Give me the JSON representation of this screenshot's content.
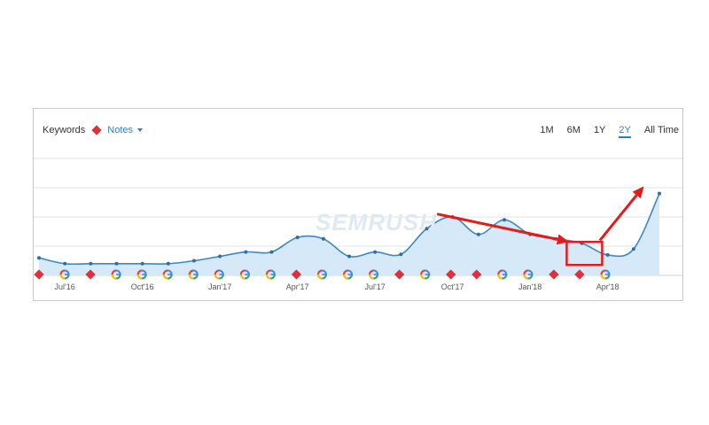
{
  "header": {
    "keywords_label": "Keywords",
    "notes_label": "Notes"
  },
  "ranges": [
    {
      "label": "1M",
      "active": false
    },
    {
      "label": "6M",
      "active": false
    },
    {
      "label": "1Y",
      "active": false
    },
    {
      "label": "2Y",
      "active": true
    },
    {
      "label": "All Time",
      "active": false
    }
  ],
  "watermark": "SEMRUSH",
  "colors": {
    "line": "#3d87c3",
    "fill": "#d5e9f8",
    "grid": "#e3e3e3",
    "note_marker": "#e0303c",
    "arrow": "#e21b1b",
    "accent": "#2f7fc0"
  },
  "chart_data": {
    "type": "area",
    "title": "",
    "xlabel": "",
    "ylabel": "",
    "x_tick_labels": [
      "Jul'16",
      "Oct'16",
      "Jan'17",
      "Apr'17",
      "Jul'17",
      "Oct'17",
      "Jan'18",
      "Apr'18"
    ],
    "x_tick_positions": [
      1,
      4,
      7,
      10,
      13,
      16,
      19,
      22
    ],
    "ylim": [
      0,
      4
    ],
    "grid": true,
    "series": [
      {
        "values": [
          0.6,
          0.4,
          0.4,
          0.4,
          0.4,
          0.4,
          0.5,
          0.65,
          0.8,
          0.8,
          1.3,
          1.25,
          0.65,
          0.8,
          0.72,
          1.6,
          2.0,
          1.4,
          1.9,
          1.4,
          1.25,
          1.1,
          0.7,
          0.9,
          2.8
        ],
        "index_points": 25
      }
    ],
    "markers": [
      "note",
      "google",
      "note",
      "google",
      "google",
      "google",
      "google",
      "google",
      "google",
      "google",
      "note",
      "google",
      "google",
      "google",
      "note",
      "google",
      "note",
      "note",
      "google",
      "google",
      "note",
      "note",
      "google"
    ],
    "annotations": [
      {
        "type": "arrow",
        "from_index": 15.4,
        "from_value": 2.1,
        "to_index": 20.5,
        "to_value": 1.15
      },
      {
        "type": "box",
        "index": 21.1,
        "value": 0.75
      },
      {
        "type": "arrow",
        "from_index": 21.7,
        "from_value": 1.2,
        "to_index": 23.4,
        "to_value": 3.05
      }
    ]
  }
}
